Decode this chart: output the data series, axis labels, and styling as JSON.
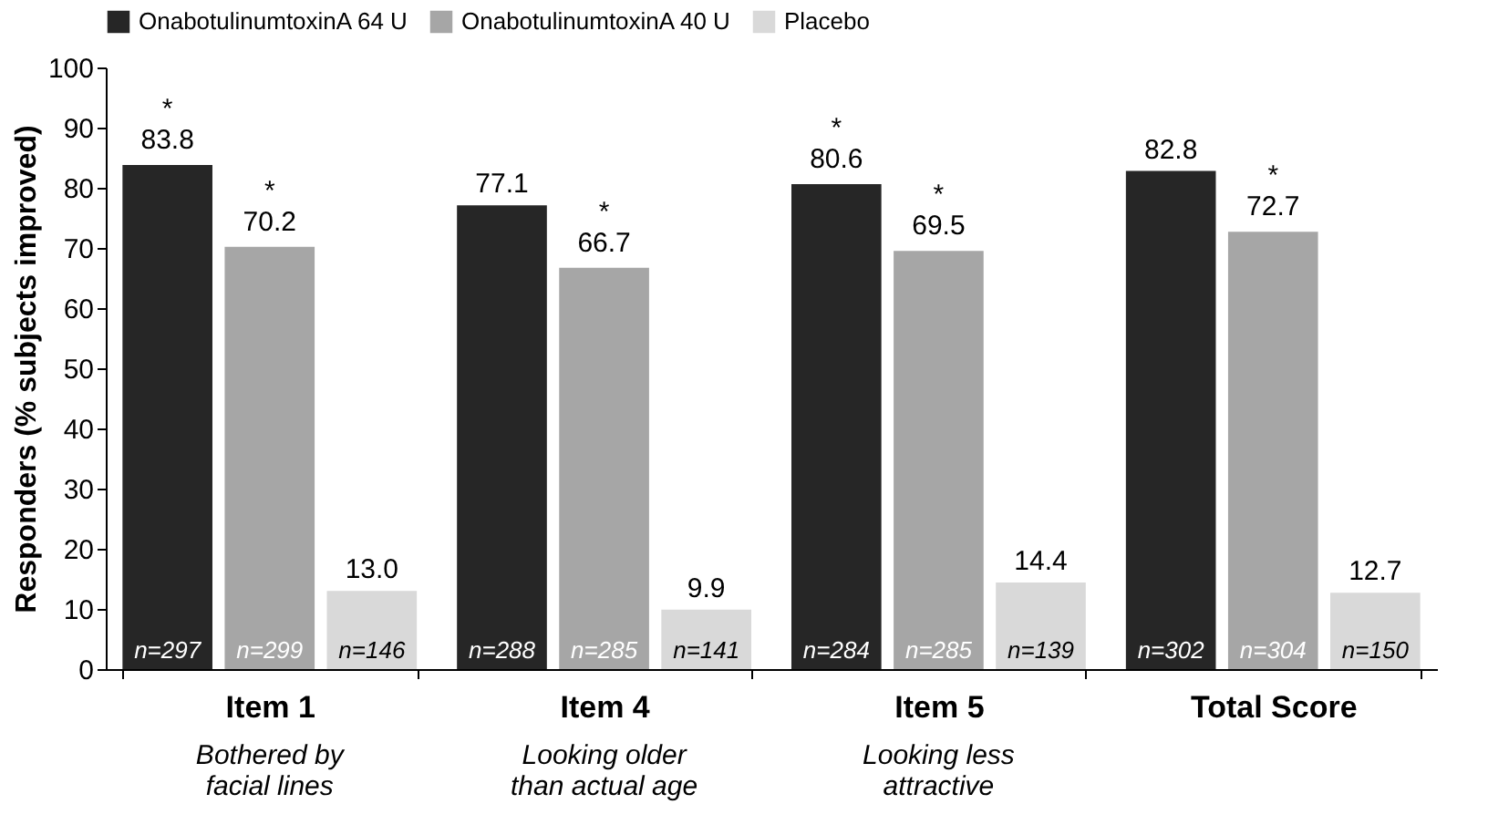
{
  "chart_data": {
    "type": "bar",
    "ylabel": "Responders (% subjects improved)",
    "categories": [
      "Item 1",
      "Item 4",
      "Item 5",
      "Total Score"
    ],
    "series": [
      {
        "name": "OnabotulinumtoxinA 64 U",
        "color": "#262626",
        "values": [
          83.8,
          77.1,
          80.6,
          82.8
        ],
        "value_labels": [
          "*\n83.8",
          "77.1",
          "*\n80.6",
          "82.8"
        ]
      },
      {
        "name": "OnabotulinumtoxinA 40 U",
        "color": "#a6a6a6",
        "values": [
          70.2,
          66.7,
          69.5,
          72.7
        ],
        "value_labels": [
          "*\n70.2",
          "*\n66.7",
          "*\n69.5",
          "*\n72.7"
        ]
      },
      {
        "name": "Placebo",
        "color": "#d9d9d9",
        "values": [
          13.0,
          9.9,
          14.4,
          12.7
        ],
        "value_labels": [
          "13.0",
          "9.9",
          "14.4",
          "12.7"
        ]
      }
    ],
    "annotations": [
      "Bothered by facial lines",
      "Looking older than actual age",
      "Looking less attractive",
      "n=297",
      "n=299",
      "n=146",
      "n=288",
      "n=285",
      "n=141",
      "n=284",
      "n=285",
      "n=139",
      "n=302",
      "n=304",
      "n=150"
    ],
    "ylim": [
      0,
      100
    ],
    "yticks": [
      0,
      10,
      20,
      30,
      40,
      50,
      60,
      70,
      80,
      90,
      100
    ],
    "grid": false,
    "legend": "top"
  }
}
